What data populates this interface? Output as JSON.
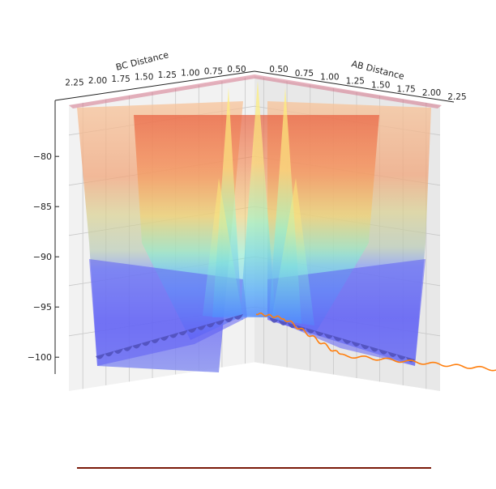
{
  "chart_data": {
    "type": "surface3d",
    "x_axis": {
      "label": "AB Distance",
      "ticks": [
        "0.50",
        "0.75",
        "1.00",
        "1.25",
        "1.50",
        "1.75",
        "2.00",
        "2.25"
      ],
      "range": [
        0.4,
        2.4
      ]
    },
    "y_axis": {
      "label": "BC Distance",
      "ticks": [
        "0.50",
        "0.75",
        "1.00",
        "1.25",
        "1.50",
        "1.75",
        "2.00",
        "2.25"
      ],
      "range": [
        0.4,
        2.4
      ]
    },
    "z_axis": {
      "label": "",
      "ticks": [
        "−80",
        "−85",
        "−90",
        "−95",
        "−100"
      ],
      "tick_values": [
        -80,
        -85,
        -90,
        -95,
        -100
      ],
      "range": [
        -104,
        -77
      ]
    },
    "colormap": "jet",
    "grid": true,
    "trajectory": {
      "color": "#ff7f0e",
      "description_points": [
        {
          "x": 0.45,
          "y": 1.55,
          "z": -99.5
        },
        {
          "x": 0.7,
          "y": 1.3,
          "z": -100.0
        },
        {
          "x": 1.0,
          "y": 1.0,
          "z": -101.5
        },
        {
          "x": 1.5,
          "y": 0.75,
          "z": -102.5
        },
        {
          "x": 2.0,
          "y": 0.74,
          "z": -103.0
        },
        {
          "x": 2.5,
          "y": 0.74,
          "z": -103.2
        }
      ]
    },
    "colors": {
      "floor_line": "#7a1a0a",
      "trajectory": "#ff7f0e",
      "pane_left": "#f2f2f2",
      "pane_right": "#e8e8e8",
      "grid": "#c8c8c8"
    }
  }
}
